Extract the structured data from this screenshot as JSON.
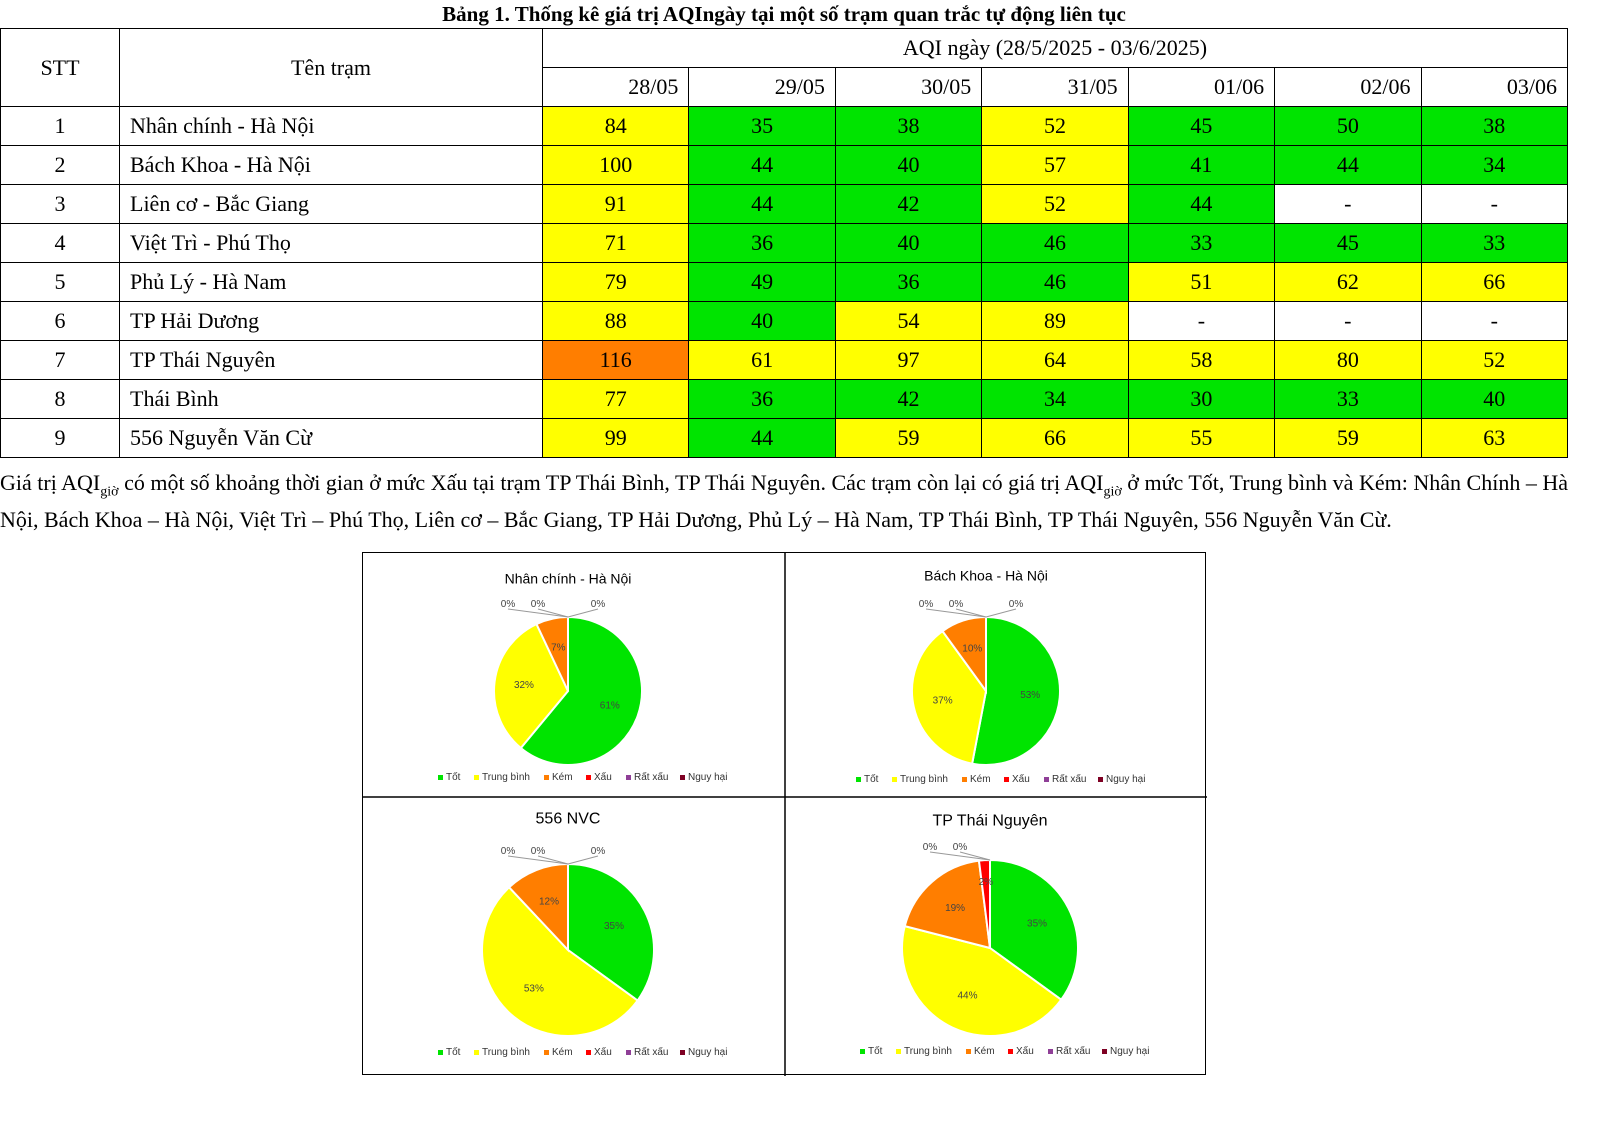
{
  "title": "Bảng 1. Thống kê giá trị AQIngày tại một số trạm quan trắc tự động liên tục",
  "table": {
    "headers": {
      "stt": "STT",
      "station": "Tên trạm",
      "group": "AQI ngày (28/5/2025 - 03/6/2025)"
    },
    "dates": [
      "28/05",
      "29/05",
      "30/05",
      "31/05",
      "01/06",
      "02/06",
      "03/06"
    ],
    "rows": [
      {
        "stt": "1",
        "name": "Nhân chính - Hà Nội",
        "values": [
          "84",
          "35",
          "38",
          "52",
          "45",
          "50",
          "38"
        ]
      },
      {
        "stt": "2",
        "name": "Bách Khoa - Hà Nội",
        "values": [
          "100",
          "44",
          "40",
          "57",
          "41",
          "44",
          "34"
        ]
      },
      {
        "stt": "3",
        "name": "Liên cơ - Bắc Giang",
        "values": [
          "91",
          "44",
          "42",
          "52",
          "44",
          "-",
          "-"
        ]
      },
      {
        "stt": "4",
        "name": "Việt Trì - Phú Thọ",
        "values": [
          "71",
          "36",
          "40",
          "46",
          "33",
          "45",
          "33"
        ]
      },
      {
        "stt": "5",
        "name": "Phủ Lý - Hà Nam",
        "values": [
          "79",
          "49",
          "36",
          "46",
          "51",
          "62",
          "66"
        ]
      },
      {
        "stt": "6",
        "name": "TP Hải Dương",
        "values": [
          "88",
          "40",
          "54",
          "89",
          "-",
          "-",
          "-"
        ]
      },
      {
        "stt": "7",
        "name": "TP Thái Nguyên",
        "values": [
          "116",
          "61",
          "97",
          "64",
          "58",
          "80",
          "52"
        ]
      },
      {
        "stt": "8",
        "name": "Thái Bình",
        "values": [
          "77",
          "36",
          "42",
          "34",
          "30",
          "33",
          "40"
        ]
      },
      {
        "stt": "9",
        "name": "556 Nguyễn Văn Cừ",
        "values": [
          "99",
          "44",
          "59",
          "66",
          "55",
          "59",
          "63"
        ]
      }
    ]
  },
  "colors": {
    "good": "#00e400",
    "moderate": "#ffff00",
    "poor": "#ff7e00",
    "bad": "#ff0000",
    "very_bad": "#8f3f97",
    "hazardous": "#7e0023"
  },
  "note": {
    "p1": "Giá trị AQI",
    "sub1": "giờ",
    "p2": " có một số khoảng thời gian ở mức Xấu tại trạm TP Thái Bình, TP Thái Nguyên. Các trạm còn lại có giá trị AQI",
    "sub2": "giờ",
    "p3": " ở mức Tốt, Trung bình và Kém: Nhân Chính – Hà Nội, Bách Khoa – Hà Nội, Việt Trì – Phú Thọ, Liên cơ – Bắc Giang, TP Hải Dương, Phủ Lý – Hà Nam, TP Thái Bình, TP Thái Nguyên, 556 Nguyễn Văn Cừ."
  },
  "chart_data": [
    {
      "type": "pie",
      "title": "Nhân chính - Hà Nội",
      "categories": [
        "Tốt",
        "Trung bình",
        "Kém",
        "Xấu",
        "Rất xấu",
        "Nguy hại"
      ],
      "values": [
        61,
        32,
        7,
        0,
        0,
        0
      ],
      "legend": "bottom"
    },
    {
      "type": "pie",
      "title": "Bách Khoa - Hà Nội",
      "categories": [
        "Tốt",
        "Trung bình",
        "Kém",
        "Xấu",
        "Rất xấu",
        "Nguy hại"
      ],
      "values": [
        53,
        37,
        10,
        0,
        0,
        0
      ],
      "legend": "bottom"
    },
    {
      "type": "pie",
      "title": "556 NVC",
      "categories": [
        "Tốt",
        "Trung bình",
        "Kém",
        "Xấu",
        "Rất xấu",
        "Nguy hại"
      ],
      "values": [
        35,
        53,
        12,
        0,
        0,
        0
      ],
      "legend": "bottom"
    },
    {
      "type": "pie",
      "title": "TP Thái Nguyên",
      "categories": [
        "Tốt",
        "Trung bình",
        "Kém",
        "Xấu",
        "Rất xấu",
        "Nguy hại"
      ],
      "values": [
        35,
        44,
        19,
        2,
        0,
        0
      ],
      "legend": "bottom"
    }
  ]
}
